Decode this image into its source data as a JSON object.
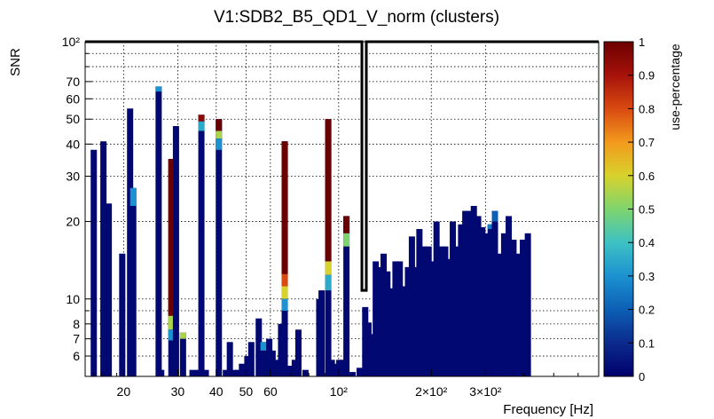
{
  "chart_data": {
    "type": "heatmap",
    "title": "V1:SDB2_B5_QD1_V_norm (clusters)",
    "xlabel": "Frequency [Hz]",
    "ylabel": "SNR",
    "xscale": "log",
    "yscale": "log",
    "xlim": [
      15,
      700
    ],
    "ylim": [
      5,
      100
    ],
    "x_ticks": [
      {
        "value": 20,
        "label": "20"
      },
      {
        "value": 30,
        "label": "30"
      },
      {
        "value": 40,
        "label": "40"
      },
      {
        "value": 50,
        "label": "50"
      },
      {
        "value": 60,
        "label": "60"
      },
      {
        "value": 100,
        "label": "10²"
      },
      {
        "value": 200,
        "label": "2×10²"
      },
      {
        "value": 300,
        "label": "3×10²"
      }
    ],
    "y_ticks": [
      {
        "value": 6,
        "label": "6"
      },
      {
        "value": 7,
        "label": "7"
      },
      {
        "value": 8,
        "label": "8"
      },
      {
        "value": 10,
        "label": "10"
      },
      {
        "value": 20,
        "label": "20"
      },
      {
        "value": 30,
        "label": "30"
      },
      {
        "value": 40,
        "label": "40"
      },
      {
        "value": 50,
        "label": "50"
      },
      {
        "value": 60,
        "label": "60"
      },
      {
        "value": 70,
        "label": "70"
      },
      {
        "value": 100,
        "label": "10²"
      }
    ],
    "colorbar": {
      "label": "use-percentage",
      "range": [
        0,
        1
      ],
      "ticks": [
        {
          "value": 0,
          "label": "0"
        },
        {
          "value": 0.1,
          "label": "0.1"
        },
        {
          "value": 0.2,
          "label": "0.2"
        },
        {
          "value": 0.3,
          "label": "0.3"
        },
        {
          "value": 0.4,
          "label": "0.4"
        },
        {
          "value": 0.5,
          "label": "0.5"
        },
        {
          "value": 0.6,
          "label": "0.6"
        },
        {
          "value": 0.7,
          "label": "0.7"
        },
        {
          "value": 0.8,
          "label": "0.8"
        },
        {
          "value": 0.9,
          "label": "0.9"
        },
        {
          "value": 1,
          "label": "1"
        }
      ],
      "stops": [
        "#00006b",
        "#0b2a8c",
        "#0c5fb5",
        "#1c92d0",
        "#3ec1c4",
        "#7ed56e",
        "#d8d22c",
        "#f29a1d",
        "#d94a11",
        "#a6120a",
        "#6b0000"
      ]
    },
    "highlight_box": {
      "x": [
        119,
        123
      ],
      "ylim": [
        10.8,
        100
      ]
    },
    "columns": [
      {
        "f": 16.0,
        "top": 38,
        "hot": []
      },
      {
        "f": 17.2,
        "top": 41,
        "hot": []
      },
      {
        "f": 17.9,
        "top": 23.5,
        "hot": []
      },
      {
        "f": 19.8,
        "top": 15,
        "hot": []
      },
      {
        "f": 21.0,
        "top": 55,
        "hot": []
      },
      {
        "f": 21.5,
        "top": 27,
        "hot": [
          {
            "lo": 23,
            "hi": 27,
            "v": 0.3
          }
        ]
      },
      {
        "f": 26.0,
        "top": 67,
        "hot": [
          {
            "lo": 64,
            "hi": 67,
            "v": 0.3
          }
        ]
      },
      {
        "f": 26.5,
        "top": 5.3,
        "hot": []
      },
      {
        "f": 28.6,
        "top": 35,
        "hot": [
          {
            "lo": 8.6,
            "hi": 35,
            "v": 1
          },
          {
            "lo": 7.6,
            "hi": 8.6,
            "v": 0.55
          },
          {
            "lo": 6.9,
            "hi": 7.6,
            "v": 0.3
          }
        ]
      },
      {
        "f": 29.6,
        "top": 47,
        "hot": []
      },
      {
        "f": 31.2,
        "top": 7.4,
        "hot": [
          {
            "lo": 7.0,
            "hi": 7.4,
            "v": 0.55
          }
        ]
      },
      {
        "f": 33.5,
        "top": 5.3,
        "hot": []
      },
      {
        "f": 35.0,
        "top": 5.3,
        "hot": []
      },
      {
        "f": 35.8,
        "top": 52,
        "hot": [
          {
            "lo": 49,
            "hi": 52,
            "v": 0.95
          },
          {
            "lo": 45,
            "hi": 49,
            "v": 0.35
          }
        ]
      },
      {
        "f": 37.0,
        "top": 5.3,
        "hot": []
      },
      {
        "f": 40.8,
        "top": 50,
        "hot": [
          {
            "lo": 45,
            "hi": 50,
            "v": 1
          },
          {
            "lo": 42,
            "hi": 45,
            "v": 0.55
          },
          {
            "lo": 38,
            "hi": 42,
            "v": 0.3
          }
        ]
      },
      {
        "f": 43.0,
        "top": 5.3,
        "hot": []
      },
      {
        "f": 44.3,
        "top": 6.8,
        "hot": []
      },
      {
        "f": 46.0,
        "top": 5.3,
        "hot": []
      },
      {
        "f": 47.2,
        "top": 5.3,
        "hot": []
      },
      {
        "f": 48.5,
        "top": 5.6,
        "hot": []
      },
      {
        "f": 50.5,
        "top": 6.0,
        "hot": []
      },
      {
        "f": 52.0,
        "top": 6.8,
        "hot": []
      },
      {
        "f": 55.0,
        "top": 8.4,
        "hot": []
      },
      {
        "f": 57.0,
        "top": 6.8,
        "hot": [
          {
            "lo": 6.3,
            "hi": 6.8,
            "v": 0.3
          }
        ]
      },
      {
        "f": 59.5,
        "top": 7.0,
        "hot": []
      },
      {
        "f": 61.0,
        "top": 6.3,
        "hot": []
      },
      {
        "f": 63.0,
        "top": 5.8,
        "hot": []
      },
      {
        "f": 65.0,
        "top": 8.0,
        "hot": []
      },
      {
        "f": 66.8,
        "top": 41,
        "hot": [
          {
            "lo": 12.5,
            "hi": 41,
            "v": 1
          },
          {
            "lo": 11.2,
            "hi": 12.5,
            "v": 0.8
          },
          {
            "lo": 10,
            "hi": 11.2,
            "v": 0.6
          },
          {
            "lo": 9,
            "hi": 10,
            "v": 0.3
          }
        ]
      },
      {
        "f": 69.5,
        "top": 5.5,
        "hot": []
      },
      {
        "f": 72.0,
        "top": 5.8,
        "hot": []
      },
      {
        "f": 74.0,
        "top": 7.6,
        "hot": []
      },
      {
        "f": 78.0,
        "top": 5.3,
        "hot": []
      },
      {
        "f": 86.5,
        "top": 10.0,
        "hot": []
      },
      {
        "f": 88.0,
        "top": 10.8,
        "hot": []
      },
      {
        "f": 92.5,
        "top": 50,
        "hot": [
          {
            "lo": 14,
            "hi": 50,
            "v": 1
          },
          {
            "lo": 12.4,
            "hi": 14,
            "v": 0.6
          },
          {
            "lo": 10.8,
            "hi": 12.4,
            "v": 0.35
          }
        ]
      },
      {
        "f": 95.0,
        "top": 5.8,
        "hot": []
      },
      {
        "f": 98.0,
        "top": 5.6,
        "hot": []
      },
      {
        "f": 100.5,
        "top": 5.8,
        "hot": []
      },
      {
        "f": 103.5,
        "top": 5.8,
        "hot": []
      },
      {
        "f": 106.0,
        "top": 21,
        "hot": [
          {
            "lo": 18,
            "hi": 21,
            "v": 1
          },
          {
            "lo": 16,
            "hi": 18,
            "v": 0.5
          }
        ]
      },
      {
        "f": 111.0,
        "top": 5.2,
        "hot": []
      },
      {
        "f": 117.0,
        "top": 5.4,
        "hot": []
      },
      {
        "f": 122.0,
        "top": 9.3,
        "hot": []
      },
      {
        "f": 125.0,
        "top": 8.1,
        "hot": []
      },
      {
        "f": 128.0,
        "top": 7.3,
        "hot": []
      },
      {
        "f": 132.0,
        "top": 14.0,
        "hot": []
      },
      {
        "f": 136.0,
        "top": 13.3,
        "hot": []
      },
      {
        "f": 140.0,
        "top": 15.0,
        "hot": []
      },
      {
        "f": 144.0,
        "top": 12.8,
        "hot": []
      },
      {
        "f": 148.0,
        "top": 11.0,
        "hot": []
      },
      {
        "f": 153.0,
        "top": 14.0,
        "hot": []
      },
      {
        "f": 158.0,
        "top": 14.0,
        "hot": []
      },
      {
        "f": 163.0,
        "top": 11.2,
        "hot": []
      },
      {
        "f": 168.0,
        "top": 13.3,
        "hot": []
      },
      {
        "f": 173.0,
        "top": 17.5,
        "hot": []
      },
      {
        "f": 178.0,
        "top": 13.3,
        "hot": []
      },
      {
        "f": 183.0,
        "top": 18.7,
        "hot": []
      },
      {
        "f": 190.0,
        "top": 16.0,
        "hot": []
      },
      {
        "f": 196.0,
        "top": 16.0,
        "hot": []
      },
      {
        "f": 202.0,
        "top": 14.0,
        "hot": []
      },
      {
        "f": 208.0,
        "top": 20.0,
        "hot": []
      },
      {
        "f": 215.0,
        "top": 16.0,
        "hot": []
      },
      {
        "f": 222.0,
        "top": 16.0,
        "hot": []
      },
      {
        "f": 228.0,
        "top": 14.3,
        "hot": []
      },
      {
        "f": 235.0,
        "top": 20.0,
        "hot": []
      },
      {
        "f": 242.0,
        "top": 16.0,
        "hot": []
      },
      {
        "f": 250.0,
        "top": 19.5,
        "hot": []
      },
      {
        "f": 258.0,
        "top": 22.0,
        "hot": []
      },
      {
        "f": 266.0,
        "top": 22.0,
        "hot": []
      },
      {
        "f": 275.0,
        "top": 23.0,
        "hot": []
      },
      {
        "f": 284.0,
        "top": 21.0,
        "hot": []
      },
      {
        "f": 293.0,
        "top": 19.0,
        "hot": []
      },
      {
        "f": 302.0,
        "top": 18.0,
        "hot": []
      },
      {
        "f": 312.0,
        "top": 19.5,
        "hot": [
          {
            "lo": 18.7,
            "hi": 19.5,
            "v": 0.25
          }
        ]
      },
      {
        "f": 322.0,
        "top": 22.0,
        "hot": [
          {
            "lo": 20,
            "hi": 22,
            "v": 0.2
          }
        ]
      },
      {
        "f": 333.0,
        "top": 15.0,
        "hot": []
      },
      {
        "f": 345.0,
        "top": 18.0,
        "hot": []
      },
      {
        "f": 357.0,
        "top": 21.0,
        "hot": []
      },
      {
        "f": 370.0,
        "top": 17.0,
        "hot": []
      },
      {
        "f": 383.0,
        "top": 15.0,
        "hot": []
      },
      {
        "f": 397.0,
        "top": 17.0,
        "hot": []
      },
      {
        "f": 412.0,
        "top": 18.0,
        "hot": []
      }
    ]
  }
}
